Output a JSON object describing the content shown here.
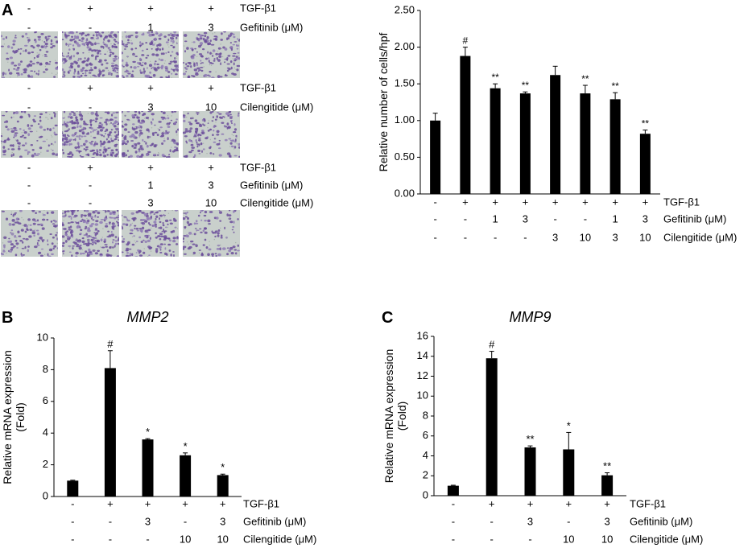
{
  "panel_a": {
    "label": "A",
    "blocks": [
      {
        "rows": [
          {
            "vals": [
              "-",
              "+",
              "+",
              "+"
            ],
            "name": "TGF-β1"
          },
          {
            "vals": [
              "-",
              "-",
              "1",
              "3"
            ],
            "name": "Gefitinib (μM)"
          }
        ]
      },
      {
        "rows": [
          {
            "vals": [
              "-",
              "+",
              "+",
              "+"
            ],
            "name": "TGF-β1"
          },
          {
            "vals": [
              "-",
              "-",
              "3",
              "10"
            ],
            "name": "Cilengitide (μM)"
          }
        ]
      },
      {
        "rows": [
          {
            "vals": [
              "-",
              "+",
              "+",
              "+"
            ],
            "name": "TGF-β1"
          },
          {
            "vals": [
              "-",
              "-",
              "1",
              "3"
            ],
            "name": "Gefitinib (μM)"
          },
          {
            "vals": [
              "-",
              "-",
              "3",
              "10"
            ],
            "name": "Cilengitide (μM)"
          }
        ]
      }
    ],
    "micrograph_density": [
      [
        0.35,
        0.9,
        0.6,
        0.55
      ],
      [
        0.3,
        0.95,
        0.6,
        0.5
      ],
      [
        0.35,
        0.9,
        0.6,
        0.3
      ]
    ]
  },
  "chart_data": [
    {
      "id": "A-bar",
      "type": "bar",
      "title": "",
      "ylabel": "Relative number of cells/hpf",
      "ylim": [
        0,
        2.5
      ],
      "yticks": [
        0,
        0.5,
        1,
        1.5,
        2,
        2.5
      ],
      "ytick_labels": [
        "0.00",
        "0.50",
        "1.00",
        "1.50",
        "2.00",
        "2.50"
      ],
      "values": [
        1.0,
        1.88,
        1.44,
        1.37,
        1.62,
        1.37,
        1.29,
        0.82
      ],
      "errors": [
        0.1,
        0.12,
        0.06,
        0.02,
        0.12,
        0.11,
        0.09,
        0.05
      ],
      "annotations": [
        "",
        "#",
        "**",
        "**",
        "",
        "**",
        "**",
        "**"
      ],
      "conditions": [
        {
          "name": "TGF-β1",
          "vals": [
            "-",
            "+",
            "+",
            "+",
            "+",
            "+",
            "+",
            "+"
          ]
        },
        {
          "name": "Gefitinib (μM)",
          "vals": [
            "-",
            "-",
            "1",
            "3",
            "-",
            "-",
            "1",
            "3"
          ]
        },
        {
          "name": "Cilengitide (μM)",
          "vals": [
            "-",
            "-",
            "-",
            "-",
            "3",
            "10",
            "3",
            "10"
          ]
        }
      ]
    },
    {
      "id": "B",
      "panel_label": "B",
      "type": "bar",
      "title": "MMP2",
      "ylabel": [
        "Relative mRNA expression",
        "(Fold)"
      ],
      "ylim": [
        0,
        10
      ],
      "yticks": [
        0,
        2,
        4,
        6,
        8,
        10
      ],
      "ytick_labels": [
        "0",
        "2",
        "4",
        "6",
        "8",
        "10"
      ],
      "values": [
        1.0,
        8.1,
        3.6,
        2.6,
        1.35
      ],
      "errors": [
        0.03,
        1.1,
        0.05,
        0.15,
        0.06
      ],
      "annotations": [
        "",
        "#",
        "*",
        "*",
        "*"
      ],
      "conditions": [
        {
          "name": "TGF-β1",
          "vals": [
            "-",
            "+",
            "+",
            "+",
            "+"
          ]
        },
        {
          "name": "Gefitinib (μM)",
          "vals": [
            "-",
            "-",
            "3",
            "-",
            "3"
          ]
        },
        {
          "name": "Cilengitide (μM)",
          "vals": [
            "-",
            "-",
            "-",
            "10",
            "10"
          ]
        }
      ]
    },
    {
      "id": "C",
      "panel_label": "C",
      "type": "bar",
      "title": "MMP9",
      "ylabel": [
        "Relative mRNA expression",
        "(Fold)"
      ],
      "ylim": [
        0,
        16
      ],
      "yticks": [
        0,
        2,
        4,
        6,
        8,
        10,
        12,
        14,
        16
      ],
      "ytick_labels": [
        "0",
        "2",
        "4",
        "6",
        "8",
        "10",
        "12",
        "14",
        "16"
      ],
      "values": [
        1.0,
        13.8,
        4.85,
        4.65,
        2.05
      ],
      "errors": [
        0.05,
        0.7,
        0.15,
        1.7,
        0.25
      ],
      "annotations": [
        "",
        "#",
        "**",
        "*",
        "**"
      ],
      "conditions": [
        {
          "name": "TGF-β1",
          "vals": [
            "-",
            "+",
            "+",
            "+",
            "+"
          ]
        },
        {
          "name": "Gefitinib (μM)",
          "vals": [
            "-",
            "-",
            "3",
            "-",
            "3"
          ]
        },
        {
          "name": "Cilengitide (μM)",
          "vals": [
            "-",
            "-",
            "-",
            "10",
            "10"
          ]
        }
      ]
    }
  ]
}
